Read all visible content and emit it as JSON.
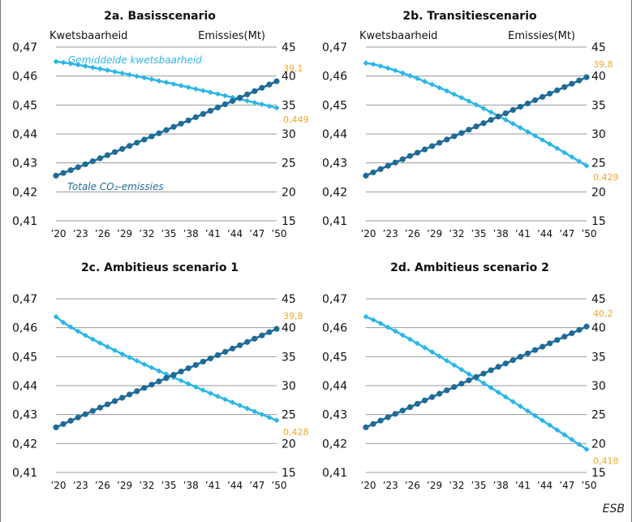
{
  "colors": {
    "vulnerability": "#29b6e8",
    "emissions": "#1f6b97",
    "end_label": "#f5a623",
    "gridline": "#9a9a9a"
  },
  "source": "ESB",
  "chart_data": [
    {
      "type": "line",
      "title": "2a. Basisscenario",
      "left_axis_label": "Kwetsbaarheid",
      "right_axis_label": "Emissies(Mt)",
      "series_labels": {
        "vulnerability": "Gemiddelde kwetsbaarheid",
        "emissions": "Totale CO₂-emissies"
      },
      "left_ylim": [
        0.41,
        0.47
      ],
      "right_ylim": [
        15,
        45
      ],
      "left_ticks": [
        "0,41",
        "0,42",
        "0,43",
        "0,44",
        "0,45",
        "0,46",
        "0,47"
      ],
      "right_ticks": [
        "15",
        "20",
        "25",
        "30",
        "35",
        "40",
        "45"
      ],
      "x_tick_labels": [
        "’20",
        "’23",
        "’26",
        "’29",
        "’32",
        "’35",
        "’38",
        "’41",
        "’44",
        "’47",
        "’50"
      ],
      "x": [
        2020,
        2050
      ],
      "vulnerability": {
        "start": 0.465,
        "end": 0.449,
        "curve": 1.15
      },
      "emissions": {
        "start": 22.8,
        "end": 39.1,
        "curve": 1.05
      },
      "end_labels": {
        "emissions": "39,1",
        "vulnerability": "0,449"
      },
      "grid": "horizontal"
    },
    {
      "type": "line",
      "title": "2b. Transitiescenario",
      "left_axis_label": "Kwetsbaarheid",
      "right_axis_label": "Emissies(Mt)",
      "left_ylim": [
        0.41,
        0.47
      ],
      "right_ylim": [
        15,
        45
      ],
      "left_ticks": [
        "0,41",
        "0,42",
        "0,43",
        "0,44",
        "0,45",
        "0,46",
        "0,47"
      ],
      "right_ticks": [
        "15",
        "20",
        "25",
        "30",
        "35",
        "40",
        "45"
      ],
      "x_tick_labels": [
        "’20",
        "’23",
        "’26",
        "’29",
        "’32",
        "’35",
        "’38",
        "’41",
        "’44",
        "’47",
        "’50"
      ],
      "x": [
        2020,
        2050
      ],
      "vulnerability": {
        "start": 0.4645,
        "end": 0.429,
        "curve": 1.3
      },
      "emissions": {
        "start": 22.8,
        "end": 39.8,
        "curve": 1.0
      },
      "end_labels": {
        "emissions": "39,8",
        "vulnerability": "0,429"
      },
      "grid": "horizontal"
    },
    {
      "type": "line",
      "title": "2c. Ambitieus scenario 1",
      "left_ylim": [
        0.41,
        0.47
      ],
      "right_ylim": [
        15,
        45
      ],
      "left_ticks": [
        "0,41",
        "0,42",
        "0,43",
        "0,44",
        "0,45",
        "0,46",
        "0,47"
      ],
      "right_ticks": [
        "15",
        "20",
        "25",
        "30",
        "35",
        "40",
        "45"
      ],
      "x_tick_labels": [
        "’20",
        "’23",
        "’26",
        "’29",
        "’32",
        "’35",
        "’38",
        "’41",
        "’44",
        "’47",
        "’50"
      ],
      "x": [
        2020,
        2050
      ],
      "vulnerability": {
        "start": 0.4638,
        "end": 0.428,
        "curve": 0.85
      },
      "emissions": {
        "start": 22.8,
        "end": 39.8,
        "curve": 1.0
      },
      "end_labels": {
        "emissions": "39,8",
        "vulnerability": "0,428"
      },
      "grid": "horizontal"
    },
    {
      "type": "line",
      "title": "2d. Ambitieus scenario 2",
      "left_ylim": [
        0.41,
        0.47
      ],
      "right_ylim": [
        15,
        45
      ],
      "left_ticks": [
        "0,41",
        "0,42",
        "0,43",
        "0,44",
        "0,45",
        "0,46",
        "0,47"
      ],
      "right_ticks": [
        "15",
        "20",
        "25",
        "30",
        "35",
        "40",
        "45"
      ],
      "x_tick_labels": [
        "’20",
        "’23",
        "’26",
        "’29",
        "’32",
        "’35",
        "’38",
        "’41",
        "’44",
        "’47",
        "’50"
      ],
      "x": [
        2020,
        2050
      ],
      "vulnerability": {
        "start": 0.4638,
        "end": 0.418,
        "curve": 1.1
      },
      "emissions": {
        "start": 22.8,
        "end": 40.2,
        "curve": 1.0
      },
      "end_labels": {
        "emissions": "40,2",
        "vulnerability": "0,418"
      },
      "grid": "horizontal"
    }
  ]
}
